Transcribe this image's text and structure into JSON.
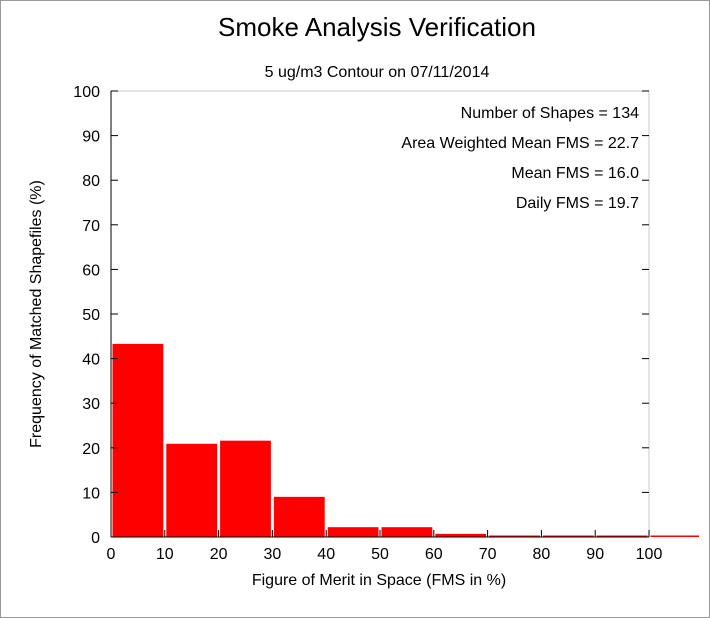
{
  "chart_data": {
    "type": "bar",
    "title": "Smoke Analysis Verification",
    "subtitle": "5 ug/m3 Contour on 07/11/2014",
    "xlabel": "Figure of Merit in Space (FMS in %)",
    "ylabel": "Frequency of Matched Shapefiles (%)",
    "xlim": [
      0,
      100
    ],
    "ylim": [
      0,
      100
    ],
    "xticks": [
      "0",
      "10",
      "20",
      "30",
      "40",
      "50",
      "60",
      "70",
      "80",
      "90",
      "100"
    ],
    "yticks": [
      "0",
      "10",
      "20",
      "30",
      "40",
      "50",
      "60",
      "70",
      "80",
      "90",
      "100"
    ],
    "bins": [
      {
        "start": 0,
        "end": 10,
        "value": 43.3
      },
      {
        "start": 10,
        "end": 20,
        "value": 20.9
      },
      {
        "start": 20,
        "end": 30,
        "value": 21.6
      },
      {
        "start": 30,
        "end": 40,
        "value": 9.0
      },
      {
        "start": 40,
        "end": 50,
        "value": 2.2
      },
      {
        "start": 50,
        "end": 60,
        "value": 2.2
      },
      {
        "start": 60,
        "end": 70,
        "value": 0.7
      },
      {
        "start": 70,
        "end": 80,
        "value": 0
      },
      {
        "start": 80,
        "end": 90,
        "value": 0
      },
      {
        "start": 90,
        "end": 100,
        "value": 0
      },
      {
        "start": 100,
        "end": 110,
        "value": 0
      }
    ],
    "bar_color": "#ff0000",
    "stats": [
      "Number of Shapes = 134",
      "Area Weighted Mean FMS = 22.7",
      "Mean FMS = 16.0",
      "Daily FMS = 19.7"
    ],
    "grid": false
  }
}
